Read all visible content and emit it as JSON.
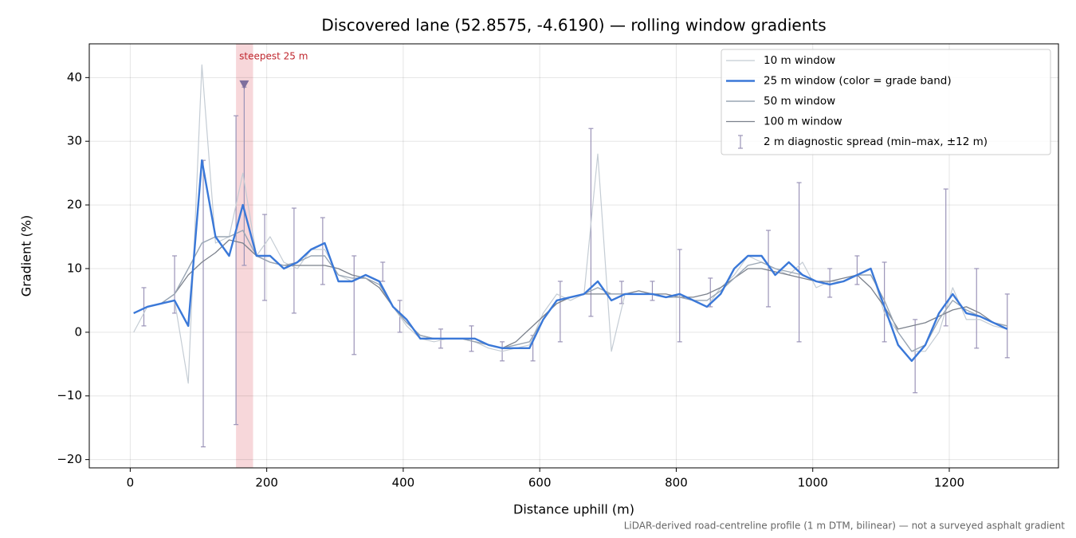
{
  "chart_data": {
    "type": "line",
    "title": "Discovered lane (52.8575, -4.6190) — rolling window gradients",
    "xlabel": "Distance uphill (m)",
    "ylabel": "Gradient (%)",
    "footnote": "LiDAR-derived road-centreline profile (1 m DTM, bilinear) — not a surveyed asphalt gradient",
    "xlim": [
      -60,
      1360
    ],
    "ylim": [
      -21.3,
      45.3
    ],
    "xticks": [
      0,
      200,
      400,
      600,
      800,
      1000,
      1200
    ],
    "yticks": [
      {
        "value": -20,
        "label": "−20"
      },
      {
        "value": -10,
        "label": "−10"
      },
      0,
      10,
      20,
      30,
      40
    ],
    "grid": true,
    "legend": "upper right",
    "x": [
      5,
      25,
      45,
      65,
      85,
      105,
      125,
      145,
      165,
      185,
      205,
      225,
      245,
      265,
      285,
      305,
      325,
      345,
      365,
      385,
      405,
      425,
      445,
      465,
      485,
      505,
      525,
      545,
      565,
      585,
      605,
      625,
      645,
      665,
      685,
      705,
      725,
      745,
      765,
      785,
      805,
      825,
      845,
      865,
      885,
      905,
      925,
      945,
      965,
      985,
      1005,
      1025,
      1045,
      1065,
      1085,
      1105,
      1125,
      1145,
      1165,
      1185,
      1205,
      1225,
      1245,
      1265,
      1285
    ],
    "series": [
      {
        "name": "10 m window",
        "color": "#c4ccd4",
        "width": 1.2,
        "values": [
          0,
          4,
          4.5,
          5,
          -8,
          42,
          14,
          15,
          25,
          12,
          15,
          11,
          10,
          13,
          13,
          9,
          8,
          9,
          8,
          4,
          1,
          -1,
          -1.5,
          -1,
          -1,
          -1.5,
          -2.5,
          -3,
          -2.5,
          -2,
          3,
          6,
          5,
          6,
          28,
          -3,
          6,
          6,
          6,
          5.5,
          6,
          5,
          4,
          7,
          9,
          12,
          11,
          10,
          9,
          11,
          7,
          8,
          8,
          9,
          10,
          3,
          0,
          -3,
          -3,
          0,
          7,
          2,
          2,
          1,
          0.5
        ]
      },
      {
        "name": "25 m window (color = grade band)",
        "color": "#3a78d8",
        "width": 2.4,
        "values": [
          3,
          4,
          4.5,
          5,
          1,
          27,
          15,
          12,
          20,
          12,
          12,
          10,
          11,
          13,
          14,
          8,
          8,
          9,
          8,
          4,
          2,
          -1,
          -1,
          -1,
          -1,
          -1,
          -2,
          -2.5,
          -2.5,
          -2.5,
          2,
          5,
          5.5,
          6,
          8,
          5,
          6,
          6,
          6,
          5.5,
          6,
          5,
          4,
          6,
          10,
          12,
          12,
          9,
          11,
          9,
          8,
          7.5,
          8,
          9,
          10,
          4,
          -2,
          -4.5,
          -2,
          3,
          6,
          3,
          2.5,
          1.5,
          0.5
        ]
      },
      {
        "name": "50 m window",
        "color": "#9aa6b4",
        "width": 1.4,
        "values": [
          3,
          4,
          4.5,
          6,
          10,
          14,
          15,
          15,
          16,
          12,
          11,
          10.5,
          11,
          12,
          12,
          9,
          8.5,
          8.5,
          7.5,
          4,
          1.5,
          -0.5,
          -1,
          -1,
          -1,
          -1.5,
          -2,
          -2.5,
          -2,
          -1.5,
          2,
          5,
          5.5,
          6,
          7,
          6,
          6,
          6,
          6,
          5.5,
          5.5,
          5,
          5,
          6.5,
          8.5,
          10.5,
          11,
          10,
          9.5,
          9,
          8,
          7.5,
          8,
          9,
          9,
          5,
          0,
          -3,
          -2,
          2,
          5,
          3.5,
          2.5,
          1.5,
          1
        ]
      },
      {
        "name": "100 m window",
        "color": "#7b818c",
        "width": 1.3,
        "values": [
          3,
          4,
          4.5,
          6,
          9,
          11,
          12.5,
          14.5,
          14,
          12,
          11,
          10.5,
          10.5,
          10.5,
          10.5,
          10,
          9,
          8.5,
          7,
          4,
          1.5,
          -0.5,
          -1,
          -1,
          -1,
          -1.5,
          -2,
          -2.5,
          -1.5,
          0.5,
          2.5,
          4.5,
          5.5,
          6,
          6,
          6,
          6,
          6.5,
          6,
          6,
          5.5,
          5.5,
          6,
          7,
          8.5,
          10,
          10,
          9.5,
          9,
          8.5,
          8,
          8,
          8.5,
          9,
          7,
          4,
          0.5,
          1,
          1.5,
          2.5,
          3.5,
          4,
          3,
          1.5,
          1
        ]
      }
    ],
    "spread": {
      "name": "2 m diagnostic spread (min–max, ±12 m)",
      "color": "#9b94b8",
      "x": [
        20,
        65,
        107,
        155,
        167,
        197,
        240,
        282,
        328,
        370,
        395,
        455,
        500,
        545,
        590,
        630,
        675,
        720,
        765,
        805,
        850,
        935,
        980,
        1025,
        1065,
        1105,
        1150,
        1195,
        1240,
        1285
      ],
      "low": [
        1,
        3,
        -18,
        -14.5,
        10.5,
        5,
        3,
        7.5,
        -3.5,
        8,
        0,
        -2.5,
        -3,
        -4.5,
        -4.5,
        -1.5,
        2.5,
        4.5,
        5,
        -1.5,
        4,
        4,
        -1.5,
        5.5,
        7.5,
        -1.5,
        -9.5,
        1,
        -2.5,
        -4
      ],
      "high": [
        7,
        12,
        27,
        34,
        38.5,
        18.5,
        19.5,
        18,
        12,
        11,
        5,
        0.5,
        1,
        -1.5,
        -0.5,
        8,
        32,
        8,
        8,
        13,
        8.5,
        16,
        23.5,
        10,
        12,
        11,
        2,
        22.5,
        10,
        6
      ]
    },
    "highlight": {
      "label": "steepest 25 m",
      "x": [
        155,
        180
      ],
      "color": "#f4c9cd",
      "label_color": "#c0282f",
      "peak_x": 167,
      "peak_y": 38.8,
      "peak_color": "#7f6f9e"
    }
  }
}
